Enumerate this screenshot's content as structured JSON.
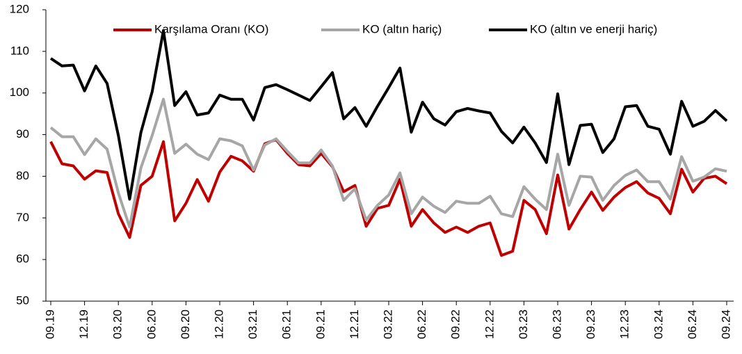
{
  "chart_data": {
    "type": "line",
    "categories": [
      "09.19",
      null,
      null,
      "12.19",
      null,
      null,
      "03.20",
      null,
      null,
      "06.20",
      null,
      null,
      "09.20",
      null,
      null,
      "12.20",
      null,
      null,
      "03.21",
      null,
      null,
      "06.21",
      null,
      null,
      "09.21",
      null,
      null,
      "12.21",
      null,
      null,
      "03.22",
      null,
      null,
      "06.22",
      null,
      null,
      "09.22",
      null,
      null,
      "12.22",
      null,
      null,
      "03.23",
      null,
      null,
      "06.23",
      null,
      null,
      "09.23",
      null,
      null,
      "12.23",
      null,
      null,
      "03.24",
      null,
      null,
      "06.24",
      null,
      null,
      "09.24"
    ],
    "series": [
      {
        "name": "Karşılama Oranı (KO)",
        "color": "#c00000",
        "values": [
          88.3,
          83,
          82.5,
          79.3,
          81.3,
          80.9,
          71,
          65.3,
          77.8,
          80,
          88.3,
          69.3,
          73.5,
          79.2,
          74,
          81,
          84.8,
          83.7,
          81.2,
          87.8,
          88.8,
          85.5,
          82.8,
          82.5,
          85.5,
          82.3,
          76.3,
          77.8,
          68,
          72.3,
          73,
          79.3,
          68,
          72,
          68.8,
          66.5,
          67.8,
          66.5,
          68,
          68.8,
          61,
          62,
          74.2,
          72,
          66.2,
          80.3,
          67.3,
          72,
          76.2,
          71.8,
          75,
          77.3,
          78.7,
          76,
          74.7,
          71,
          81.7,
          76.2,
          79.5,
          80,
          78.2
        ]
      },
      {
        "name": "KO (altın hariç)",
        "color": "#a6a6a6",
        "values": [
          91.7,
          89.5,
          89.5,
          85.2,
          89,
          86.5,
          76,
          67.8,
          82,
          89.8,
          98.5,
          85.5,
          87.7,
          85.3,
          84,
          89,
          88.5,
          87.3,
          81.5,
          87.5,
          89,
          86,
          83.2,
          83.2,
          86.3,
          82.5,
          74.2,
          77,
          69.5,
          73,
          75.5,
          80.8,
          71,
          75,
          72.8,
          71.3,
          74,
          73.5,
          73.5,
          75.2,
          71,
          70.3,
          77.5,
          74.5,
          72,
          85.3,
          73,
          80,
          79.8,
          74.2,
          77.8,
          80.2,
          81.5,
          78.7,
          78.7,
          74.5,
          84.7,
          78.8,
          79.8,
          81.8,
          81.2
        ]
      },
      {
        "name": "KO (altın ve enerji hariç)",
        "color": "#000000",
        "values": [
          108.3,
          106.5,
          106.7,
          100.5,
          106.5,
          102.3,
          89.8,
          74.5,
          90.5,
          100.3,
          115,
          97,
          100.3,
          94.7,
          95.2,
          99.5,
          98.5,
          98.5,
          93.5,
          101.3,
          102,
          100.8,
          99.5,
          98.2,
          101.5,
          104.9,
          93.8,
          96.5,
          92,
          96.8,
          101.3,
          106,
          90.6,
          97.8,
          93.8,
          92.3,
          95.5,
          96.3,
          95.7,
          95.2,
          90.8,
          88,
          91.8,
          88,
          83.3,
          99.8,
          82.8,
          92.2,
          92.5,
          85.7,
          89,
          96.7,
          97,
          92,
          91.3,
          85.3,
          98,
          92,
          93.2,
          95.8,
          93.3
        ]
      }
    ],
    "ylim": [
      50,
      120
    ],
    "yticks": [
      50,
      60,
      70,
      80,
      90,
      100,
      110,
      120
    ],
    "legend": "top"
  }
}
